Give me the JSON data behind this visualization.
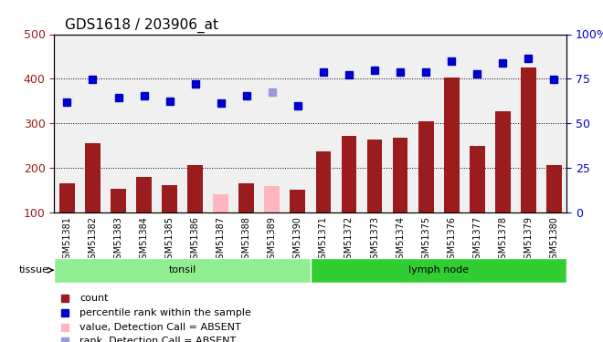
{
  "title": "GDS1618 / 203906_at",
  "samples": [
    "GSM51381",
    "GSM51382",
    "GSM51383",
    "GSM51384",
    "GSM51385",
    "GSM51386",
    "GSM51387",
    "GSM51388",
    "GSM51389",
    "GSM51390",
    "GSM51371",
    "GSM51372",
    "GSM51373",
    "GSM51374",
    "GSM51375",
    "GSM51376",
    "GSM51377",
    "GSM51378",
    "GSM51379",
    "GSM51380"
  ],
  "count_values": [
    165,
    255,
    153,
    178,
    160,
    205,
    140,
    165,
    158,
    150,
    237,
    272,
    263,
    268,
    305,
    402,
    248,
    327,
    425,
    205
  ],
  "count_absent": [
    false,
    false,
    false,
    false,
    false,
    false,
    true,
    false,
    true,
    false,
    false,
    false,
    false,
    false,
    false,
    false,
    false,
    false,
    false,
    false
  ],
  "rank_values": [
    348,
    398,
    358,
    362,
    350,
    388,
    345,
    362,
    370,
    338,
    415,
    408,
    418,
    415,
    415,
    440,
    410,
    435,
    445,
    398
  ],
  "rank_absent": [
    false,
    false,
    false,
    false,
    false,
    false,
    false,
    false,
    true,
    false,
    false,
    false,
    false,
    false,
    false,
    false,
    false,
    false,
    false,
    false
  ],
  "groups": [
    {
      "name": "tonsil",
      "start": 0,
      "end": 10,
      "color": "#90EE90"
    },
    {
      "name": "lymph node",
      "start": 10,
      "end": 20,
      "color": "#32CD32"
    }
  ],
  "ylim_left": [
    100,
    500
  ],
  "ylim_right": [
    0,
    100
  ],
  "yticks_left": [
    100,
    200,
    300,
    400,
    500
  ],
  "yticks_right": [
    0,
    25,
    50,
    75,
    100
  ],
  "bar_color": "#9B1C1C",
  "bar_absent_color": "#FFB6C1",
  "rank_color": "#0000CD",
  "rank_absent_color": "#9999DD",
  "grid_color": "black",
  "bg_color": "#F0F0F0"
}
